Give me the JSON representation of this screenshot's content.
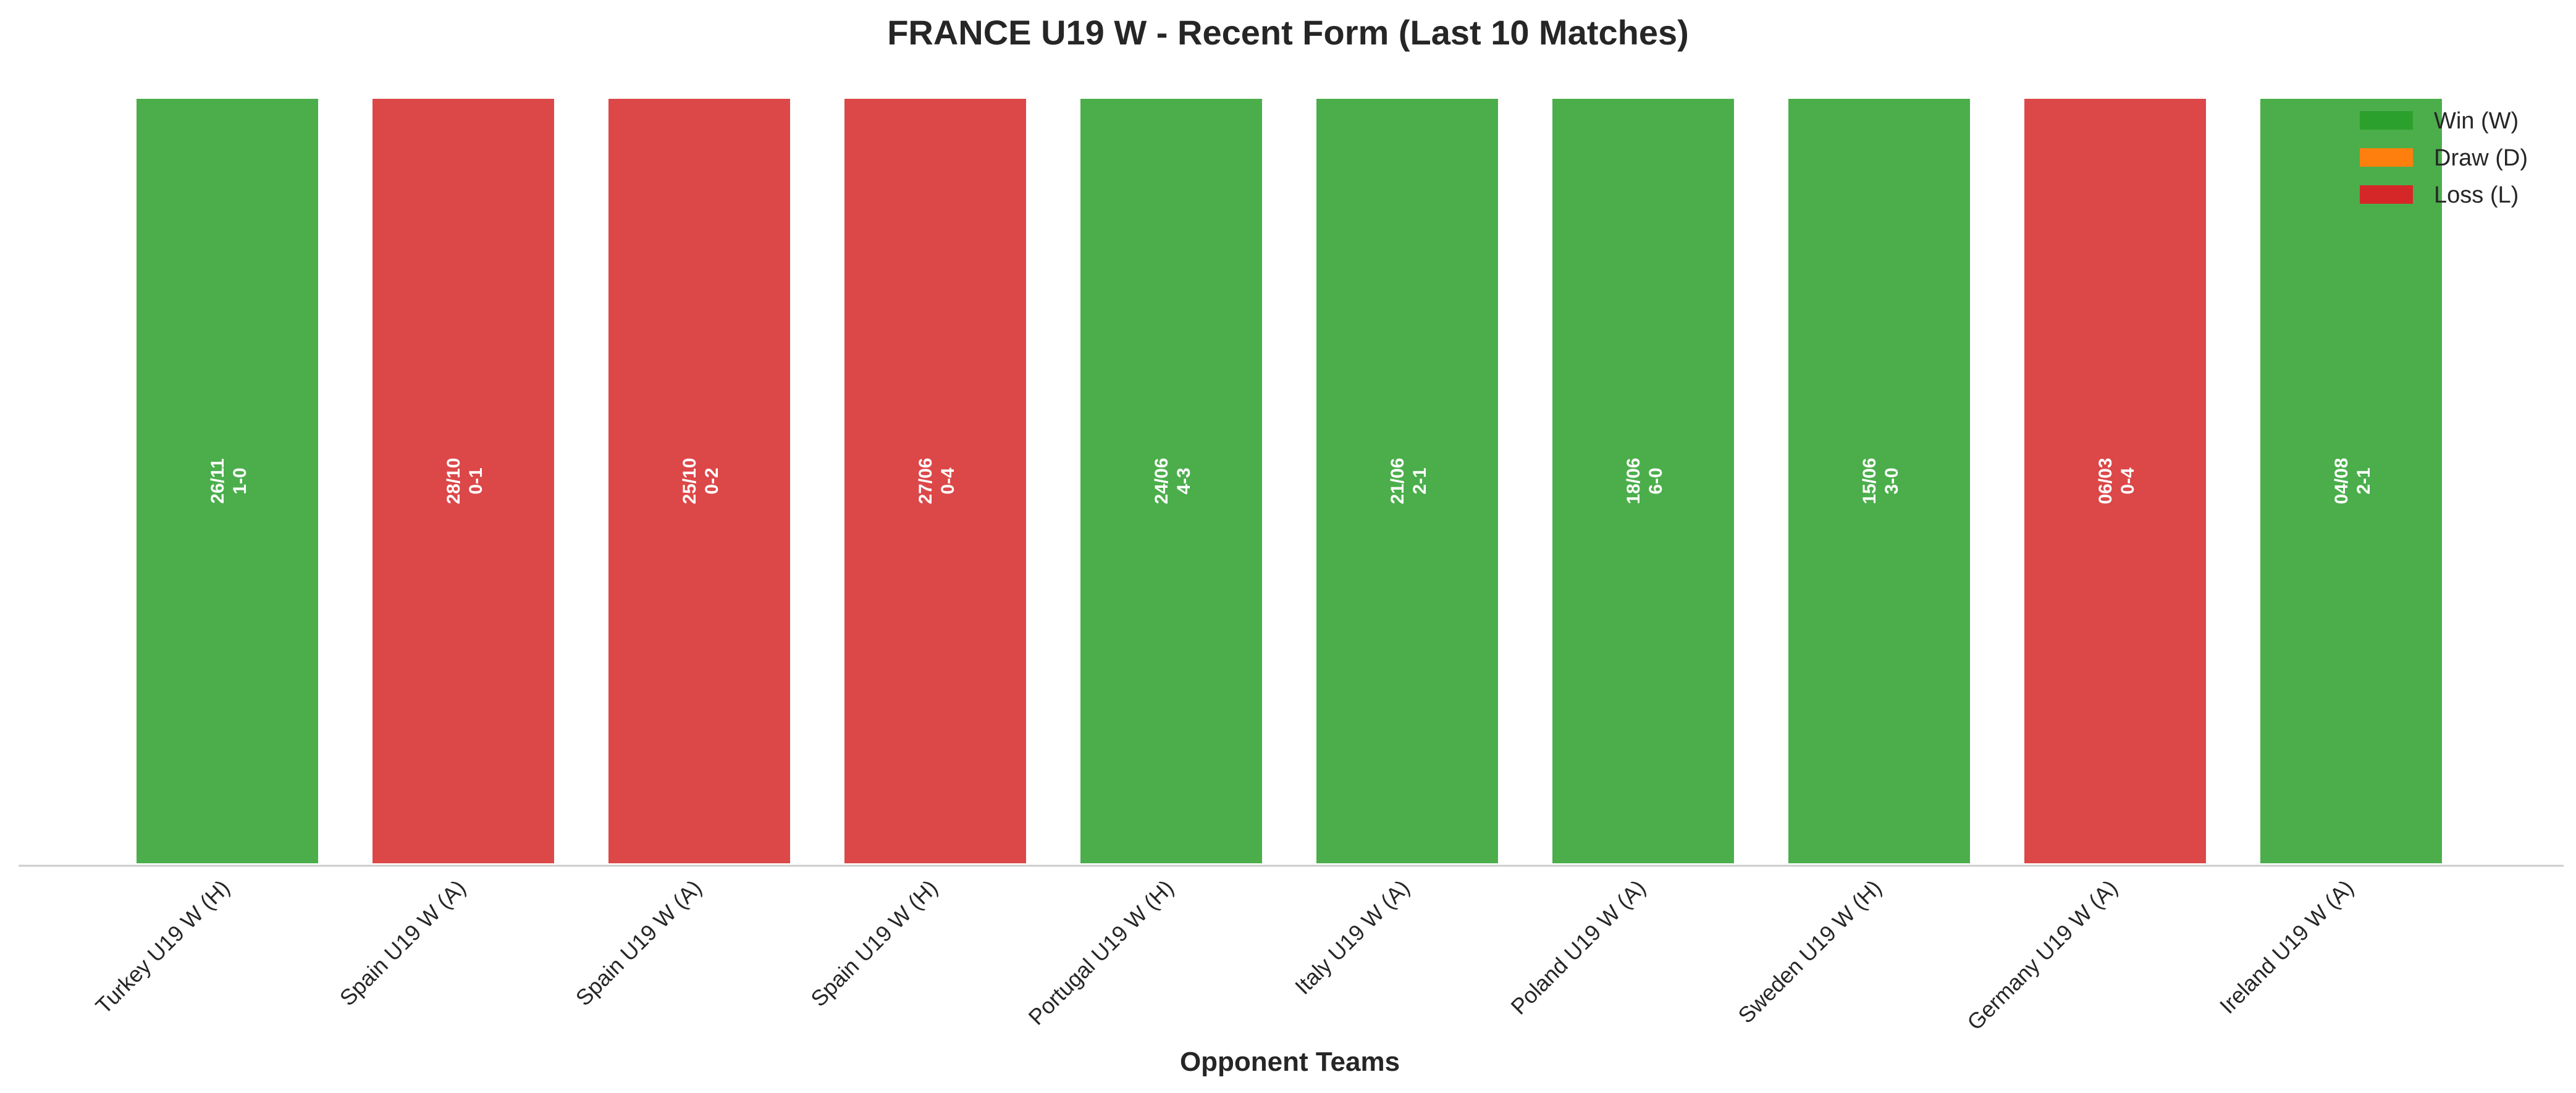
{
  "chart_data": {
    "type": "bar",
    "title": "FRANCE U19 W - Recent Form (Last 10 Matches)",
    "xlabel": "Opponent Teams",
    "ylabel": "",
    "ylim": [
      0,
      1
    ],
    "grid": false,
    "legend_position": "top-right",
    "categories": [
      "Turkey U19 W (H)",
      "Spain U19 W (A)",
      "Spain U19 W (A)",
      "Spain U19 W (H)",
      "Portugal U19 W (H)",
      "Italy U19 W (A)",
      "Poland U19 W (A)",
      "Sweden U19 W (H)",
      "Germany U19 W (A)",
      "Ireland U19 W (A)"
    ],
    "values": [
      1,
      1,
      1,
      1,
      1,
      1,
      1,
      1,
      1,
      1
    ],
    "results": [
      "W",
      "L",
      "L",
      "L",
      "W",
      "W",
      "W",
      "W",
      "L",
      "W"
    ],
    "dates": [
      "26/11",
      "28/10",
      "25/10",
      "27/06",
      "24/06",
      "21/06",
      "18/06",
      "15/06",
      "06/03",
      "04/08"
    ],
    "scores": [
      "1-0",
      "0-1",
      "0-2",
      "0-4",
      "4-3",
      "2-1",
      "6-0",
      "3-0",
      "0-4",
      "2-1"
    ],
    "legend": [
      {
        "key": "W",
        "label": "Win (W)",
        "color": "#2ca02c"
      },
      {
        "key": "D",
        "label": "Draw (D)",
        "color": "#ff7f0e"
      },
      {
        "key": "L",
        "label": "Loss (L)",
        "color": "#d62728"
      }
    ]
  }
}
